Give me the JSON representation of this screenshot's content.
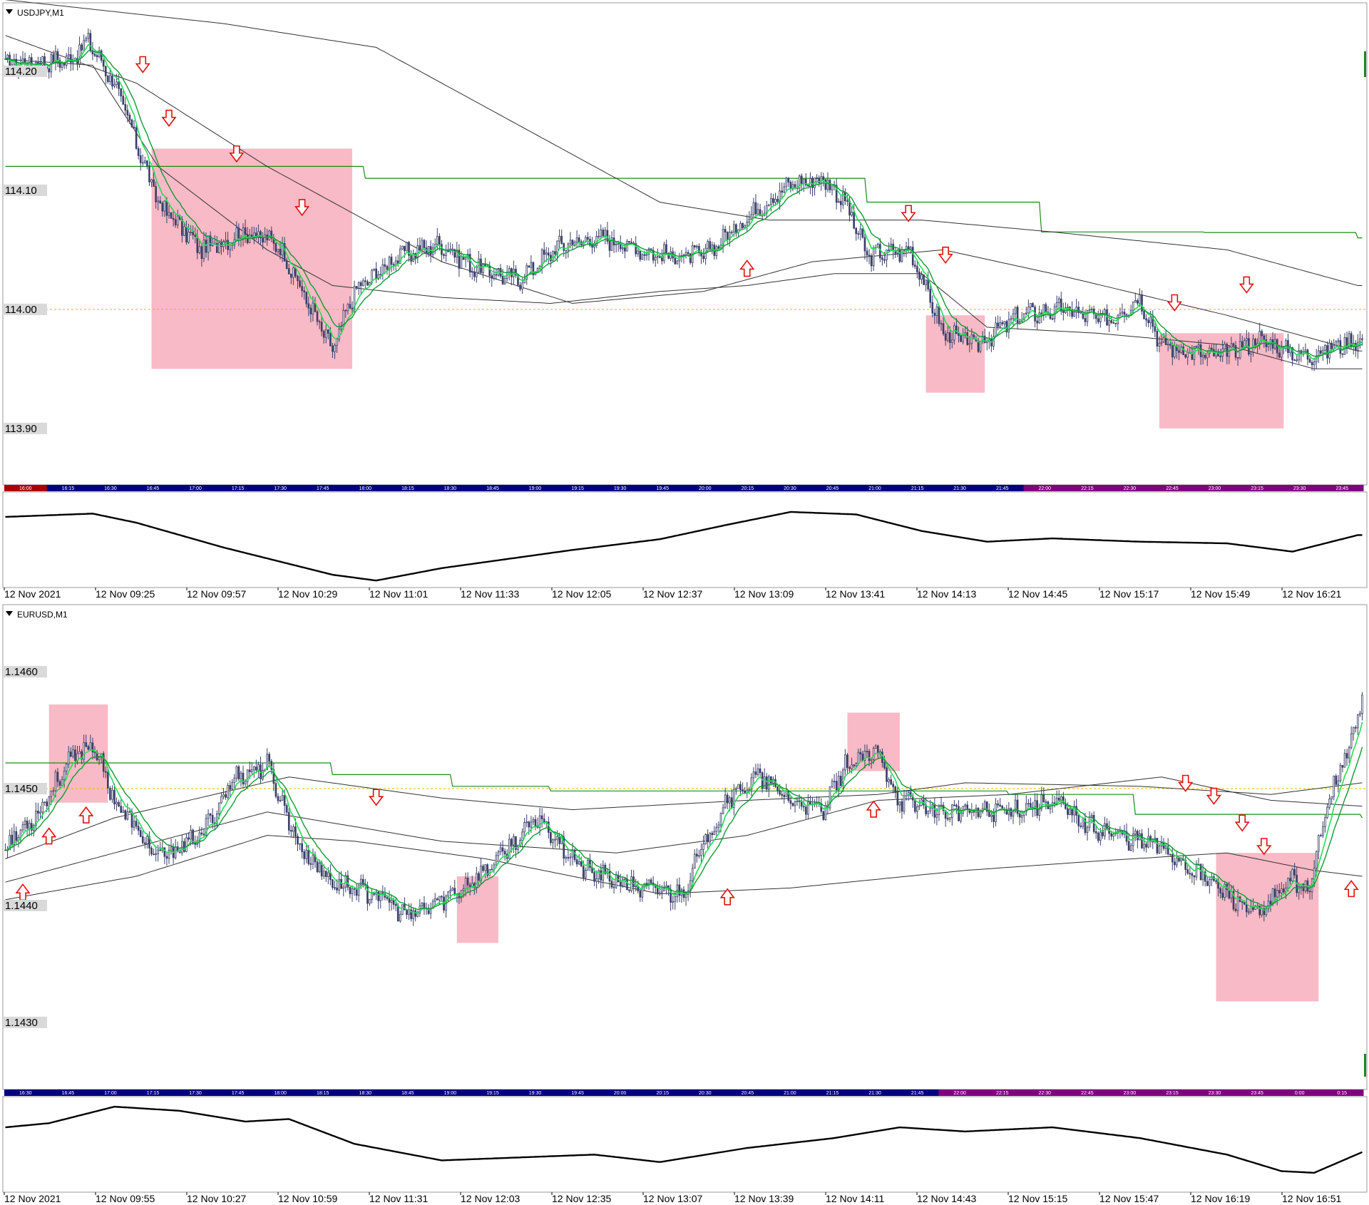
{
  "colors": {
    "background": "#ffffff",
    "candle": "#3a3f66",
    "ema_fast": "#22dd55",
    "ema_slow": "#109a35",
    "ma_gray": "#333333",
    "level_line": "#1a8a1a",
    "highlight": "#f8b6c3",
    "arrow": "#e01010",
    "zero_line": "#f0b000",
    "session_blue": "#000080",
    "session_purple": "#800080",
    "session_red": "#aa0000",
    "oscillator": "#000000",
    "grid_border": "#9a9a9a",
    "price_label_bg": "#d9d9d9"
  },
  "chart_data": [
    {
      "type": "line",
      "title": "USDJPY,M1",
      "price_labels": [
        "114.20",
        "114.10",
        "114.00",
        "113.90"
      ],
      "price_levels": [
        114.2,
        114.1,
        114.0,
        113.9
      ],
      "ylim": [
        113.855,
        114.255
      ],
      "session_bar_labels": [
        "16:00",
        "16:15",
        "16:30",
        "16:45",
        "17:00",
        "17:15",
        "17:30",
        "17:45",
        "18:00",
        "18:15",
        "18:30",
        "18:45",
        "19:00",
        "19:15",
        "19:30",
        "19:45",
        "20:00",
        "20:15",
        "20:30",
        "20:45",
        "21:00",
        "21:15",
        "21:30",
        "21:45",
        "22:00",
        "22:15",
        "22:30",
        "22:45",
        "23:00",
        "23:15",
        "23:30",
        "23:45"
      ],
      "time_axis_labels": [
        "12 Nov 2021",
        "12 Nov 09:25",
        "12 Nov 09:57",
        "12 Nov 10:29",
        "12 Nov 11:01",
        "12 Nov 11:33",
        "12 Nov 12:05",
        "12 Nov 12:37",
        "12 Nov 13:09",
        "12 Nov 13:41",
        "12 Nov 14:13",
        "12 Nov 14:45",
        "12 Nov 15:17",
        "12 Nov 15:49",
        "12 Nov 16:21"
      ],
      "close_keyframes": [
        [
          0,
          114.205
        ],
        [
          30,
          114.21
        ],
        [
          38,
          114.225
        ],
        [
          50,
          114.19
        ],
        [
          70,
          114.09
        ],
        [
          90,
          114.05
        ],
        [
          110,
          114.065
        ],
        [
          125,
          114.055
        ],
        [
          150,
          113.965
        ],
        [
          160,
          114.015
        ],
        [
          180,
          114.045
        ],
        [
          200,
          114.055
        ],
        [
          215,
          114.035
        ],
        [
          235,
          114.025
        ],
        [
          255,
          114.055
        ],
        [
          275,
          114.06
        ],
        [
          300,
          114.045
        ],
        [
          320,
          114.045
        ],
        [
          345,
          114.085
        ],
        [
          360,
          114.105
        ],
        [
          375,
          114.11
        ],
        [
          385,
          114.09
        ],
        [
          395,
          114.045
        ],
        [
          415,
          114.05
        ],
        [
          430,
          113.98
        ],
        [
          445,
          113.97
        ],
        [
          465,
          113.995
        ],
        [
          485,
          114.0
        ],
        [
          505,
          113.99
        ],
        [
          520,
          114.01
        ],
        [
          530,
          113.97
        ],
        [
          555,
          113.96
        ],
        [
          575,
          113.975
        ],
        [
          595,
          113.96
        ],
        [
          620,
          113.975
        ]
      ],
      "ema_gray_long_keyframes": [
        [
          0,
          114.26
        ],
        [
          100,
          114.24
        ],
        [
          170,
          114.22
        ],
        [
          250,
          114.14
        ],
        [
          300,
          114.09
        ],
        [
          350,
          114.075
        ],
        [
          420,
          114.075
        ],
        [
          480,
          114.065
        ],
        [
          560,
          114.05
        ],
        [
          620,
          114.02
        ]
      ],
      "ema_gray_mid_keyframes": [
        [
          0,
          114.23
        ],
        [
          60,
          114.19
        ],
        [
          120,
          114.12
        ],
        [
          200,
          114.04
        ],
        [
          260,
          114.005
        ],
        [
          320,
          114.015
        ],
        [
          370,
          114.04
        ],
        [
          430,
          114.05
        ],
        [
          480,
          114.03
        ],
        [
          560,
          113.995
        ],
        [
          620,
          113.965
        ]
      ],
      "ema_gray_short_keyframes": [
        [
          0,
          114.21
        ],
        [
          40,
          114.205
        ],
        [
          70,
          114.12
        ],
        [
          120,
          114.05
        ],
        [
          150,
          114.02
        ],
        [
          200,
          114.01
        ],
        [
          250,
          114.005
        ],
        [
          300,
          114.015
        ],
        [
          340,
          114.02
        ],
        [
          380,
          114.03
        ],
        [
          420,
          114.03
        ],
        [
          450,
          113.985
        ],
        [
          500,
          113.98
        ],
        [
          560,
          113.97
        ],
        [
          600,
          113.95
        ],
        [
          620,
          113.95
        ]
      ],
      "level_steps": [
        [
          0,
          114.12
        ],
        [
          165,
          114.11
        ],
        [
          395,
          114.09
        ],
        [
          475,
          114.065
        ],
        [
          550,
          114.0645
        ],
        [
          620,
          114.06
        ]
      ],
      "highlight_zones": [
        [
          67,
          159,
          114.135,
          113.95
        ],
        [
          422,
          449,
          113.995,
          113.93
        ],
        [
          529,
          586,
          113.98,
          113.9
        ]
      ],
      "arrows": [
        {
          "bar": 63,
          "dir": "down",
          "price": 114.205
        },
        {
          "bar": 75,
          "dir": "down",
          "price": 114.16
        },
        {
          "bar": 106,
          "dir": "down",
          "price": 114.13
        },
        {
          "bar": 136,
          "dir": "down",
          "price": 114.085
        },
        {
          "bar": 340,
          "dir": "up",
          "price": 114.035
        },
        {
          "bar": 414,
          "dir": "down",
          "price": 114.08
        },
        {
          "bar": 431,
          "dir": "down",
          "price": 114.045
        },
        {
          "bar": 536,
          "dir": "down",
          "price": 114.005
        },
        {
          "bar": 569,
          "dir": "down",
          "price": 114.02
        }
      ],
      "oscillator_keyframes": [
        [
          0,
          0.82
        ],
        [
          40,
          0.86
        ],
        [
          60,
          0.75
        ],
        [
          100,
          0.45
        ],
        [
          150,
          0.12
        ],
        [
          170,
          0.05
        ],
        [
          200,
          0.2
        ],
        [
          260,
          0.42
        ],
        [
          300,
          0.55
        ],
        [
          330,
          0.72
        ],
        [
          360,
          0.88
        ],
        [
          390,
          0.85
        ],
        [
          420,
          0.65
        ],
        [
          450,
          0.52
        ],
        [
          480,
          0.56
        ],
        [
          520,
          0.52
        ],
        [
          560,
          0.5
        ],
        [
          590,
          0.4
        ],
        [
          620,
          0.6
        ]
      ]
    },
    {
      "type": "line",
      "title": "EURUSD,M1",
      "price_labels": [
        "1.1460",
        "1.1450",
        "1.1440",
        "1.1430"
      ],
      "price_levels": [
        1.146,
        1.145,
        1.144,
        1.143
      ],
      "ylim": [
        1.14245,
        1.14655
      ],
      "session_bar_labels": [
        "16:30",
        "16:45",
        "17:00",
        "17:15",
        "17:30",
        "17:45",
        "18:00",
        "18:15",
        "18:30",
        "18:45",
        "19:00",
        "19:15",
        "19:30",
        "19:45",
        "20:00",
        "20:15",
        "20:30",
        "20:45",
        "21:00",
        "21:15",
        "21:30",
        "21:45",
        "22:00",
        "22:15",
        "22:30",
        "22:45",
        "23:00",
        "23:15",
        "23:30",
        "23:45",
        "0:00",
        "0:15"
      ],
      "time_axis_labels": [
        "12 Nov 2021",
        "12 Nov 09:55",
        "12 Nov 10:27",
        "12 Nov 10:59",
        "12 Nov 11:31",
        "12 Nov 12:03",
        "12 Nov 12:35",
        "12 Nov 13:07",
        "12 Nov 13:39",
        "12 Nov 14:11",
        "12 Nov 14:43",
        "12 Nov 15:15",
        "12 Nov 15:47",
        "12 Nov 16:19",
        "12 Nov 16:51"
      ],
      "close_keyframes": [
        [
          0,
          1.1445
        ],
        [
          15,
          1.1448
        ],
        [
          28,
          1.1452
        ],
        [
          40,
          1.1454
        ],
        [
          50,
          1.1449
        ],
        [
          70,
          1.1444
        ],
        [
          90,
          1.1446
        ],
        [
          105,
          1.1451
        ],
        [
          120,
          1.1452
        ],
        [
          135,
          1.1445
        ],
        [
          150,
          1.1442
        ],
        [
          170,
          1.1441
        ],
        [
          185,
          1.1439
        ],
        [
          205,
          1.1441
        ],
        [
          220,
          1.1443
        ],
        [
          245,
          1.14475
        ],
        [
          265,
          1.1443
        ],
        [
          290,
          1.14415
        ],
        [
          310,
          1.1441
        ],
        [
          330,
          1.1449
        ],
        [
          345,
          1.1451
        ],
        [
          360,
          1.1449
        ],
        [
          375,
          1.1448
        ],
        [
          385,
          1.1452
        ],
        [
          400,
          1.1453
        ],
        [
          410,
          1.1449
        ],
        [
          430,
          1.1448
        ],
        [
          450,
          1.1448
        ],
        [
          470,
          1.14485
        ],
        [
          480,
          1.1449
        ],
        [
          495,
          1.1447
        ],
        [
          510,
          1.1446
        ],
        [
          530,
          1.1445
        ],
        [
          545,
          1.1443
        ],
        [
          560,
          1.1441
        ],
        [
          575,
          1.1439
        ],
        [
          590,
          1.14425
        ],
        [
          598,
          1.1441
        ],
        [
          605,
          1.14485
        ],
        [
          615,
          1.1453
        ],
        [
          622,
          1.14575
        ]
      ],
      "ema_gray_long_keyframes": [
        [
          0,
          1.14405
        ],
        [
          60,
          1.14425
        ],
        [
          120,
          1.1446
        ],
        [
          160,
          1.14455
        ],
        [
          220,
          1.1444
        ],
        [
          300,
          1.1441
        ],
        [
          360,
          1.14415
        ],
        [
          440,
          1.1443
        ],
        [
          500,
          1.14438
        ],
        [
          560,
          1.14445
        ],
        [
          600,
          1.1443
        ],
        [
          622,
          1.14425
        ]
      ],
      "ema_gray_mid_keyframes": [
        [
          0,
          1.1442
        ],
        [
          60,
          1.1445
        ],
        [
          120,
          1.1448
        ],
        [
          200,
          1.14455
        ],
        [
          280,
          1.14445
        ],
        [
          340,
          1.1446
        ],
        [
          400,
          1.1449
        ],
        [
          460,
          1.14495
        ],
        [
          530,
          1.1451
        ],
        [
          580,
          1.1449
        ],
        [
          622,
          1.14485
        ]
      ],
      "ema_gray_short_keyframes": [
        [
          0,
          1.1444
        ],
        [
          50,
          1.14475
        ],
        [
          130,
          1.1451
        ],
        [
          200,
          1.14492
        ],
        [
          260,
          1.14482
        ],
        [
          340,
          1.1449
        ],
        [
          400,
          1.14495
        ],
        [
          440,
          1.14505
        ],
        [
          520,
          1.14502
        ],
        [
          580,
          1.14495
        ],
        [
          622,
          1.14505
        ]
      ],
      "level_steps": [
        [
          0,
          1.14522
        ],
        [
          150,
          1.14512
        ],
        [
          205,
          1.14502
        ],
        [
          250,
          1.14498
        ],
        [
          340,
          1.14498
        ],
        [
          400,
          1.14498
        ],
        [
          460,
          1.14495
        ],
        [
          518,
          1.14478
        ],
        [
          560,
          1.14478
        ],
        [
          622,
          1.14475
        ]
      ],
      "highlight_zones": [
        [
          20,
          47,
          1.14572,
          1.14488
        ],
        [
          207,
          226,
          1.14425,
          1.14368
        ],
        [
          386,
          410,
          1.14565,
          1.14515
        ],
        [
          555,
          602,
          1.14445,
          1.14318
        ]
      ],
      "arrows": [
        {
          "bar": 8,
          "dir": "up",
          "price": 1.14412
        },
        {
          "bar": 20,
          "dir": "up",
          "price": 1.1446
        },
        {
          "bar": 37,
          "dir": "up",
          "price": 1.14478
        },
        {
          "bar": 170,
          "dir": "down",
          "price": 1.14492
        },
        {
          "bar": 331,
          "dir": "up",
          "price": 1.14408
        },
        {
          "bar": 398,
          "dir": "up",
          "price": 1.14483
        },
        {
          "bar": 541,
          "dir": "down",
          "price": 1.14504
        },
        {
          "bar": 554,
          "dir": "down",
          "price": 1.14493
        },
        {
          "bar": 567,
          "dir": "down",
          "price": 1.1447
        },
        {
          "bar": 577,
          "dir": "down",
          "price": 1.1445
        },
        {
          "bar": 617,
          "dir": "up",
          "price": 1.14415
        }
      ],
      "oscillator_keyframes": [
        [
          0,
          0.75
        ],
        [
          20,
          0.8
        ],
        [
          50,
          1.0
        ],
        [
          80,
          0.95
        ],
        [
          110,
          0.82
        ],
        [
          130,
          0.85
        ],
        [
          160,
          0.55
        ],
        [
          200,
          0.35
        ],
        [
          230,
          0.38
        ],
        [
          270,
          0.42
        ],
        [
          300,
          0.33
        ],
        [
          340,
          0.5
        ],
        [
          380,
          0.62
        ],
        [
          410,
          0.75
        ],
        [
          440,
          0.7
        ],
        [
          480,
          0.75
        ],
        [
          520,
          0.62
        ],
        [
          560,
          0.42
        ],
        [
          585,
          0.22
        ],
        [
          600,
          0.2
        ],
        [
          622,
          0.45
        ]
      ]
    }
  ]
}
